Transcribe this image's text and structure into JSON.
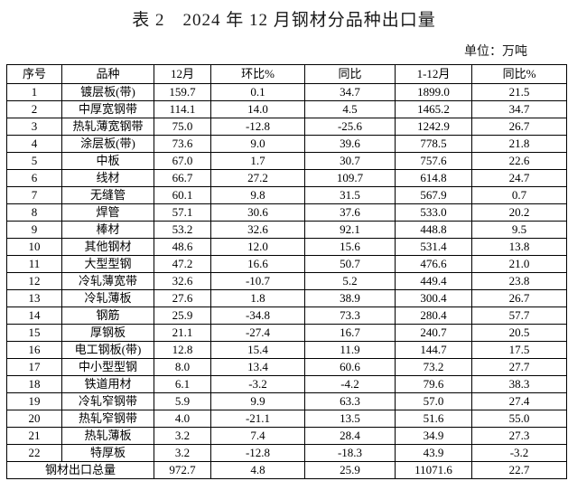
{
  "title": "表 2　2024 年 12 月钢材分品种出口量",
  "unit_label": "单位：万吨",
  "table": {
    "headers": [
      "序号",
      "品种",
      "12月",
      "环比%",
      "同比",
      "1-12月",
      "同比%"
    ],
    "rows": [
      [
        "1",
        "镀层板(带)",
        "159.7",
        "0.1",
        "34.7",
        "1899.0",
        "21.5"
      ],
      [
        "2",
        "中厚宽钢带",
        "114.1",
        "14.0",
        "4.5",
        "1465.2",
        "34.7"
      ],
      [
        "3",
        "热轧薄宽钢带",
        "75.0",
        "-12.8",
        "-25.6",
        "1242.9",
        "26.7"
      ],
      [
        "4",
        "涂层板(带)",
        "73.6",
        "9.0",
        "39.6",
        "778.5",
        "21.8"
      ],
      [
        "5",
        "中板",
        "67.0",
        "1.7",
        "30.7",
        "757.6",
        "22.6"
      ],
      [
        "6",
        "线材",
        "66.7",
        "27.2",
        "109.7",
        "614.8",
        "24.7"
      ],
      [
        "7",
        "无缝管",
        "60.1",
        "9.8",
        "31.5",
        "567.9",
        "0.7"
      ],
      [
        "8",
        "焊管",
        "57.1",
        "30.6",
        "37.6",
        "533.0",
        "20.2"
      ],
      [
        "9",
        "棒材",
        "53.2",
        "32.6",
        "92.1",
        "448.8",
        "9.5"
      ],
      [
        "10",
        "其他钢材",
        "48.6",
        "12.0",
        "15.6",
        "531.4",
        "13.8"
      ],
      [
        "11",
        "大型型钢",
        "47.2",
        "16.6",
        "50.7",
        "476.6",
        "21.0"
      ],
      [
        "12",
        "冷轧薄宽带",
        "32.6",
        "-10.7",
        "5.2",
        "449.4",
        "23.8"
      ],
      [
        "13",
        "冷轧薄板",
        "27.6",
        "1.8",
        "38.9",
        "300.4",
        "26.7"
      ],
      [
        "14",
        "钢筋",
        "25.9",
        "-34.8",
        "73.3",
        "280.4",
        "57.7"
      ],
      [
        "15",
        "厚钢板",
        "21.1",
        "-27.4",
        "16.7",
        "240.7",
        "20.5"
      ],
      [
        "16",
        "电工钢板(带)",
        "12.8",
        "15.4",
        "11.9",
        "144.7",
        "17.5"
      ],
      [
        "17",
        "中小型型钢",
        "8.0",
        "13.4",
        "60.6",
        "73.2",
        "27.7"
      ],
      [
        "18",
        "铁道用材",
        "6.1",
        "-3.2",
        "-4.2",
        "79.6",
        "38.3"
      ],
      [
        "19",
        "冷轧窄钢带",
        "5.9",
        "9.9",
        "63.3",
        "57.0",
        "27.4"
      ],
      [
        "20",
        "热轧窄钢带",
        "4.0",
        "-21.1",
        "13.5",
        "51.6",
        "55.0"
      ],
      [
        "21",
        "热轧薄板",
        "3.2",
        "7.4",
        "28.4",
        "34.9",
        "27.3"
      ],
      [
        "22",
        "特厚板",
        "3.2",
        "-12.8",
        "-18.3",
        "43.9",
        "-3.2"
      ]
    ],
    "total": {
      "label": "钢材出口总量",
      "dec": "972.7",
      "mom": "4.8",
      "yoy": "25.9",
      "ytd": "11071.6",
      "ytd_yoy": "22.7"
    }
  }
}
